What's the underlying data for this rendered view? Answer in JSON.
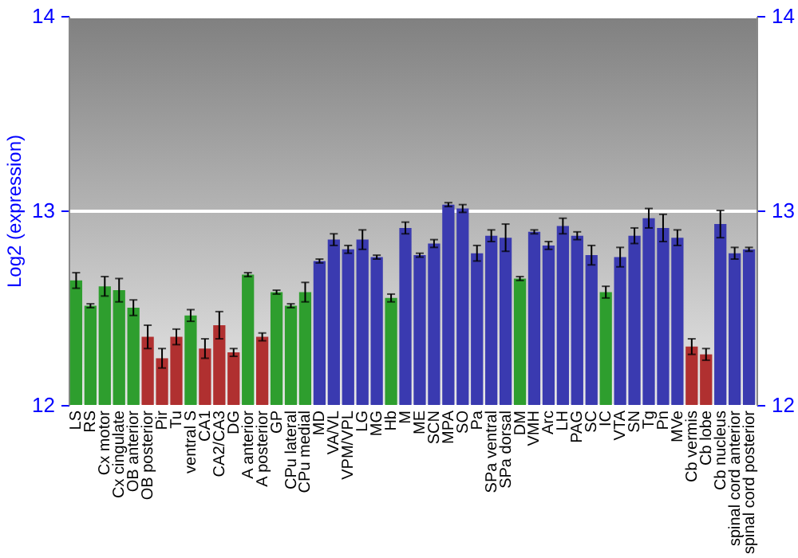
{
  "chart_data": {
    "type": "bar",
    "ylabel": "Log2 (expression)",
    "categories": [
      "LS",
      "RS",
      "Cx motor",
      "Cx cingulate",
      "OB anterior",
      "OB posterior",
      "Pir",
      "Tu",
      "ventral S",
      "CA1",
      "CA2/CA3",
      "DG",
      "A anterior",
      "A posterior",
      "GP",
      "CPu lateral",
      "CPu medial",
      "MD",
      "VA/VL",
      "VPM/VPL",
      "LG",
      "MG",
      "Hb",
      "M",
      "ME",
      "SCN",
      "MPA",
      "SO",
      "Pa",
      "SPa ventral",
      "SPa dorsal",
      "DM",
      "VMH",
      "Arc",
      "LH",
      "PAG",
      "SC",
      "IC",
      "VTA",
      "SN",
      "Tg",
      "Pn",
      "MVe",
      "Cb vermis",
      "Cb lobe",
      "Cb nucleus",
      "spinal cord anterior",
      "spinal cord posterior"
    ],
    "values": [
      12.64,
      12.51,
      12.61,
      12.59,
      12.5,
      12.35,
      12.24,
      12.35,
      12.46,
      12.29,
      12.41,
      12.27,
      12.67,
      12.35,
      12.58,
      12.51,
      12.58,
      12.74,
      12.85,
      12.8,
      12.85,
      12.76,
      12.55,
      12.91,
      12.77,
      12.83,
      13.03,
      13.01,
      12.78,
      12.87,
      12.86,
      12.65,
      12.89,
      12.82,
      12.92,
      12.87,
      12.77,
      12.58,
      12.76,
      12.87,
      12.96,
      12.91,
      12.86,
      12.3,
      12.26,
      12.93,
      12.78,
      12.8
    ],
    "errors": [
      0.04,
      0.01,
      0.05,
      0.06,
      0.04,
      0.06,
      0.05,
      0.04,
      0.03,
      0.05,
      0.07,
      0.02,
      0.01,
      0.02,
      0.01,
      0.01,
      0.05,
      0.01,
      0.03,
      0.02,
      0.05,
      0.01,
      0.02,
      0.03,
      0.01,
      0.02,
      0.01,
      0.02,
      0.04,
      0.03,
      0.07,
      0.01,
      0.01,
      0.02,
      0.04,
      0.02,
      0.05,
      0.03,
      0.05,
      0.04,
      0.05,
      0.07,
      0.04,
      0.04,
      0.03,
      0.07,
      0.03,
      0.01
    ],
    "colors": [
      "#2e9e2e",
      "#2e9e2e",
      "#2e9e2e",
      "#2e9e2e",
      "#2e9e2e",
      "#b03030",
      "#b03030",
      "#b03030",
      "#2e9e2e",
      "#b03030",
      "#b03030",
      "#b03030",
      "#2e9e2e",
      "#b03030",
      "#2e9e2e",
      "#2e9e2e",
      "#2e9e2e",
      "#3a3ab0",
      "#3a3ab0",
      "#3a3ab0",
      "#3a3ab0",
      "#3a3ab0",
      "#2e9e2e",
      "#3a3ab0",
      "#3a3ab0",
      "#3a3ab0",
      "#3a3ab0",
      "#3a3ab0",
      "#3a3ab0",
      "#3a3ab0",
      "#3a3ab0",
      "#2e9e2e",
      "#3a3ab0",
      "#3a3ab0",
      "#3a3ab0",
      "#3a3ab0",
      "#3a3ab0",
      "#2e9e2e",
      "#3a3ab0",
      "#3a3ab0",
      "#3a3ab0",
      "#3a3ab0",
      "#3a3ab0",
      "#b03030",
      "#b03030",
      "#3a3ab0",
      "#3a3ab0",
      "#3a3ab0"
    ],
    "ylim": [
      12,
      14
    ],
    "yticks": [
      12,
      13,
      14
    ],
    "y2lim": [
      12,
      14
    ],
    "y2ticks": [
      12,
      13,
      14
    ],
    "grid": "y"
  }
}
